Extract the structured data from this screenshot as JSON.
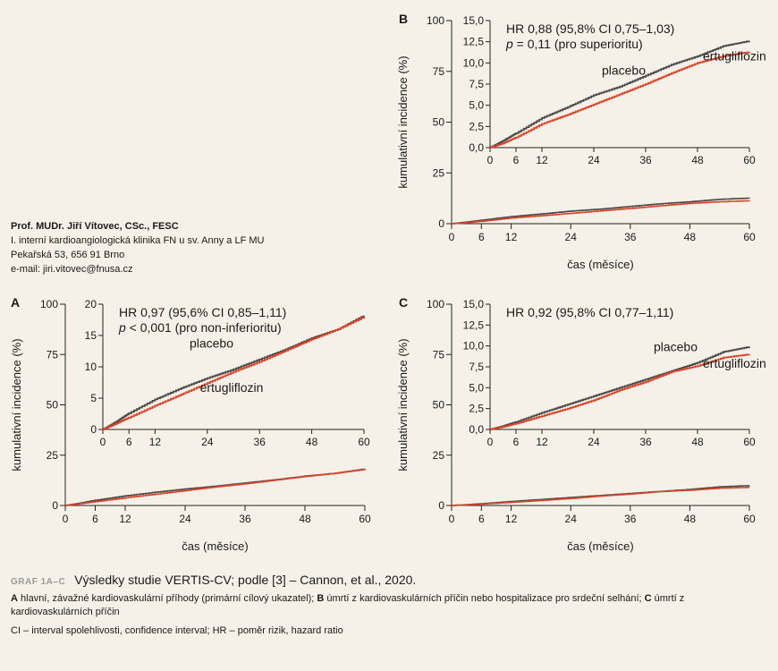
{
  "author": {
    "name": "Prof. MUDr. Jiří Vítovec, CSc., FESC",
    "line1": "I. interní kardioangiologická klinika FN u sv. Anny a LF MU",
    "line2": "Pekařská 53, 656 91 Brno",
    "email": "e-mail: jiri.vitovec@fnusa.cz"
  },
  "caption": {
    "label": "GRAF 1A–C",
    "title": "Výsledky studie VERTIS-CV; podle [3] – Cannon, et al., 2020.",
    "a_letter": "A",
    "a_text": " hlavní, závažné kardiovaskulární příhody (primární cílový ukazatel); ",
    "b_letter": "B",
    "b_text": " úmrtí z kardiovaskulárních příčin nebo hospitalizace pro srdeční selhání; ",
    "c_letter": "C",
    "c_text": " úmrtí z kardiovaskulárních příčin",
    "abbr": "CI – interval spolehlivosti, confidence interval; HR – poměr rizik, hazard ratio"
  },
  "colors": {
    "placebo": "#4a4a4a",
    "ertugliflozin": "#d9452b",
    "background": "#f6f1e8"
  },
  "chart_data": [
    {
      "panel": "A",
      "type": "line",
      "ylabel": "kumulativní incidence (%)",
      "xlabel": "čas (měsíce)",
      "xlim": [
        0,
        60
      ],
      "ylim": [
        0,
        100
      ],
      "xticks": [
        "0",
        "6",
        "12",
        "24",
        "36",
        "48",
        "60"
      ],
      "yticks": [
        "0",
        "25",
        "50",
        "75",
        "100"
      ],
      "x": [
        0,
        3,
        6,
        12,
        18,
        24,
        30,
        36,
        42,
        48,
        54,
        60
      ],
      "series": [
        {
          "name": "placebo",
          "values": [
            0,
            1.2,
            2.6,
            4.8,
            6.6,
            8.2,
            9.6,
            11.2,
            12.8,
            14.6,
            16.0,
            18.2
          ]
        },
        {
          "name": "ertugliflozin",
          "values": [
            0,
            0.9,
            1.9,
            3.8,
            5.6,
            7.4,
            9.2,
            10.8,
            12.6,
            14.4,
            16.0,
            18.0
          ]
        }
      ],
      "inset": {
        "xlim": [
          0,
          60
        ],
        "ylim": [
          0,
          20
        ],
        "xticks": [
          "0",
          "6",
          "12",
          "24",
          "36",
          "48",
          "60"
        ],
        "yticks": [
          "0",
          "5",
          "10",
          "15",
          "20"
        ],
        "hr_text": "HR 0,97 (95,6% CI 0,85–1,11)",
        "p_text": "p < 0,001 (pro non-inferioritu)",
        "placebo_label": "placebo",
        "ertu_label": "ertugliflozin"
      }
    },
    {
      "panel": "B",
      "type": "line",
      "ylabel": "kumulativní incidence (%)",
      "xlabel": "čas (měsíce)",
      "xlim": [
        0,
        60
      ],
      "ylim": [
        0,
        100
      ],
      "xticks": [
        "0",
        "6",
        "12",
        "24",
        "36",
        "48",
        "60"
      ],
      "yticks": [
        "0",
        "25",
        "50",
        "75",
        "100"
      ],
      "x": [
        0,
        3,
        6,
        12,
        18,
        24,
        30,
        36,
        42,
        48,
        54,
        60
      ],
      "series": [
        {
          "name": "placebo",
          "values": [
            0,
            0.8,
            1.7,
            3.5,
            4.8,
            6.2,
            7.2,
            8.5,
            9.8,
            10.8,
            12.0,
            12.6
          ]
        },
        {
          "name": "ertugliflozin",
          "values": [
            0,
            0.5,
            1.2,
            2.8,
            3.9,
            5.1,
            6.3,
            7.5,
            8.8,
            10.0,
            10.8,
            11.3
          ]
        }
      ],
      "inset": {
        "xlim": [
          0,
          60
        ],
        "ylim": [
          0,
          15
        ],
        "xticks": [
          "0",
          "6",
          "12",
          "24",
          "36",
          "48",
          "60"
        ],
        "yticks": [
          "0,0",
          "2,5",
          "5,0",
          "7,5",
          "10,0",
          "12,5",
          "15,0"
        ],
        "hr_text": "HR 0,88 (95,8% CI 0,75–1,03)",
        "p_text": "p = 0,11 (pro superioritu)",
        "placebo_label": "placebo",
        "ertu_label": "ertugliflozin"
      }
    },
    {
      "panel": "C",
      "type": "line",
      "ylabel": "kumulativní incidence (%)",
      "xlabel": "čas (měsíce)",
      "xlim": [
        0,
        60
      ],
      "ylim": [
        0,
        100
      ],
      "xticks": [
        "0",
        "6",
        "12",
        "24",
        "36",
        "48",
        "60"
      ],
      "yticks": [
        "0",
        "25",
        "50",
        "75",
        "100"
      ],
      "x": [
        0,
        3,
        6,
        12,
        18,
        24,
        30,
        36,
        42,
        48,
        54,
        60
      ],
      "series": [
        {
          "name": "placebo",
          "values": [
            0,
            0.4,
            0.9,
            2.0,
            3.0,
            4.0,
            5.0,
            6.0,
            7.0,
            8.0,
            9.3,
            9.9
          ]
        },
        {
          "name": "ertugliflozin",
          "values": [
            0,
            0.3,
            0.7,
            1.6,
            2.5,
            3.5,
            4.7,
            5.7,
            6.9,
            7.6,
            8.6,
            9.0
          ]
        }
      ],
      "inset": {
        "xlim": [
          0,
          60
        ],
        "ylim": [
          0,
          15
        ],
        "xticks": [
          "0",
          "6",
          "12",
          "24",
          "36",
          "48",
          "60"
        ],
        "yticks": [
          "0,0",
          "2,5",
          "5,0",
          "7,5",
          "10,0",
          "12,5",
          "15,0"
        ],
        "hr_text": "HR 0,92 (95,8% CI 0,77–1,11)",
        "p_text": "",
        "placebo_label": "placebo",
        "ertu_label": "ertugliflozin"
      }
    }
  ]
}
